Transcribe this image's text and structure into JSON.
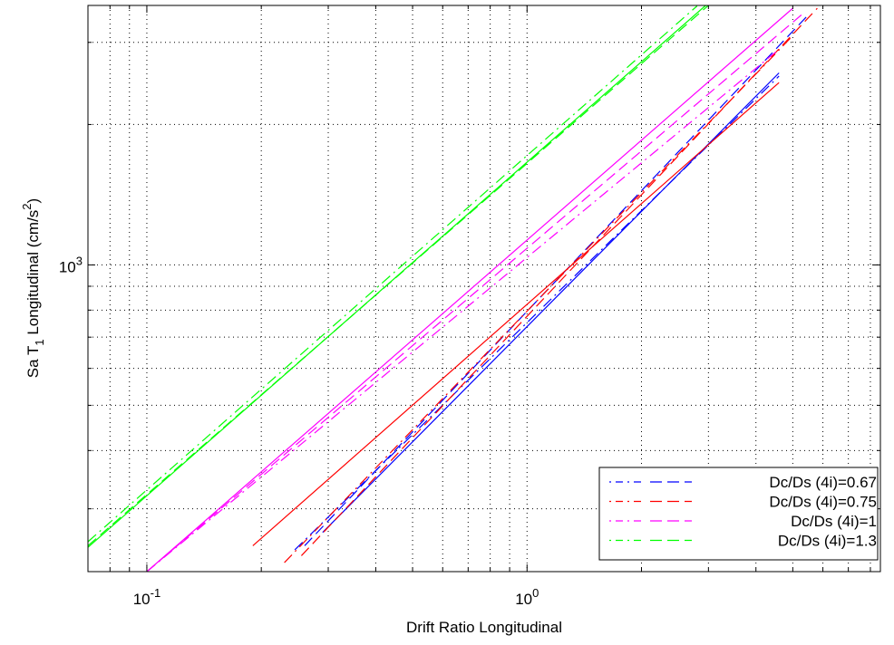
{
  "chart_data": {
    "type": "line",
    "xlabel": "Drift Ratio Longitudinal",
    "ylabel": {
      "base": "Sa T",
      "sub": "1",
      "mid": " Longitudinal (cm/s",
      "sup": "2",
      "end": ")"
    },
    "xscale": "log",
    "yscale": "log",
    "xlim": [
      0.07,
      8.5
    ],
    "ylim": [
      220,
      3600
    ],
    "x_ticks": [
      {
        "value": 0.1,
        "base": "10",
        "exp": "-1"
      },
      {
        "value": 1,
        "base": "10",
        "exp": "0"
      }
    ],
    "y_ticks": [
      {
        "value": 1000,
        "base": "10",
        "exp": "3"
      }
    ],
    "grid": true,
    "legend_position": "bottom-right",
    "series": [
      {
        "name": "Dc/Ds (4i)=0.67",
        "color": "#0000ff",
        "fit_line": {
          "x": [
            0.29,
            4.6
          ],
          "y": [
            267,
            2580
          ]
        },
        "dashdot_line": {
          "x": [
            0.245,
            4.6
          ],
          "y": [
            245,
            2540
          ]
        },
        "dashed_line": {
          "x": [
            0.26,
            5.5
          ],
          "y": [
            250,
            3440
          ]
        }
      },
      {
        "name": "Dc/Ds (4i)=0.75",
        "color": "#ff0000",
        "fit_line": {
          "x": [
            0.19,
            4.6
          ],
          "y": [
            250,
            2460
          ]
        },
        "dashdot_line": {
          "x": [
            0.23,
            5.0
          ],
          "y": [
            230,
            3100
          ]
        },
        "dashed_line": {
          "x": [
            0.255,
            5.8
          ],
          "y": [
            238,
            3550
          ]
        }
      },
      {
        "name": "Dc/Ds (4i)=1",
        "color": "#ff00ff",
        "fit_line": {
          "x": [
            0.1,
            5.0
          ],
          "y": [
            220,
            3550
          ]
        },
        "dashdot_line": {
          "x": [
            0.1,
            4.6
          ],
          "y": [
            220,
            2900
          ]
        },
        "dashed_line": {
          "x": [
            0.1,
            5.3
          ],
          "y": [
            220,
            3450
          ]
        }
      },
      {
        "name": "Dc/Ds (4i)=1.3",
        "color": "#00ff00",
        "fit_line": {
          "x": [
            0.07,
            2.95
          ],
          "y": [
            248,
            3600
          ]
        },
        "dashdot_line": {
          "x": [
            0.07,
            2.8
          ],
          "y": [
            255,
            3590
          ]
        },
        "dashed_line": {
          "x": [
            0.07,
            3.0
          ],
          "y": [
            250,
            3600
          ]
        }
      }
    ]
  }
}
